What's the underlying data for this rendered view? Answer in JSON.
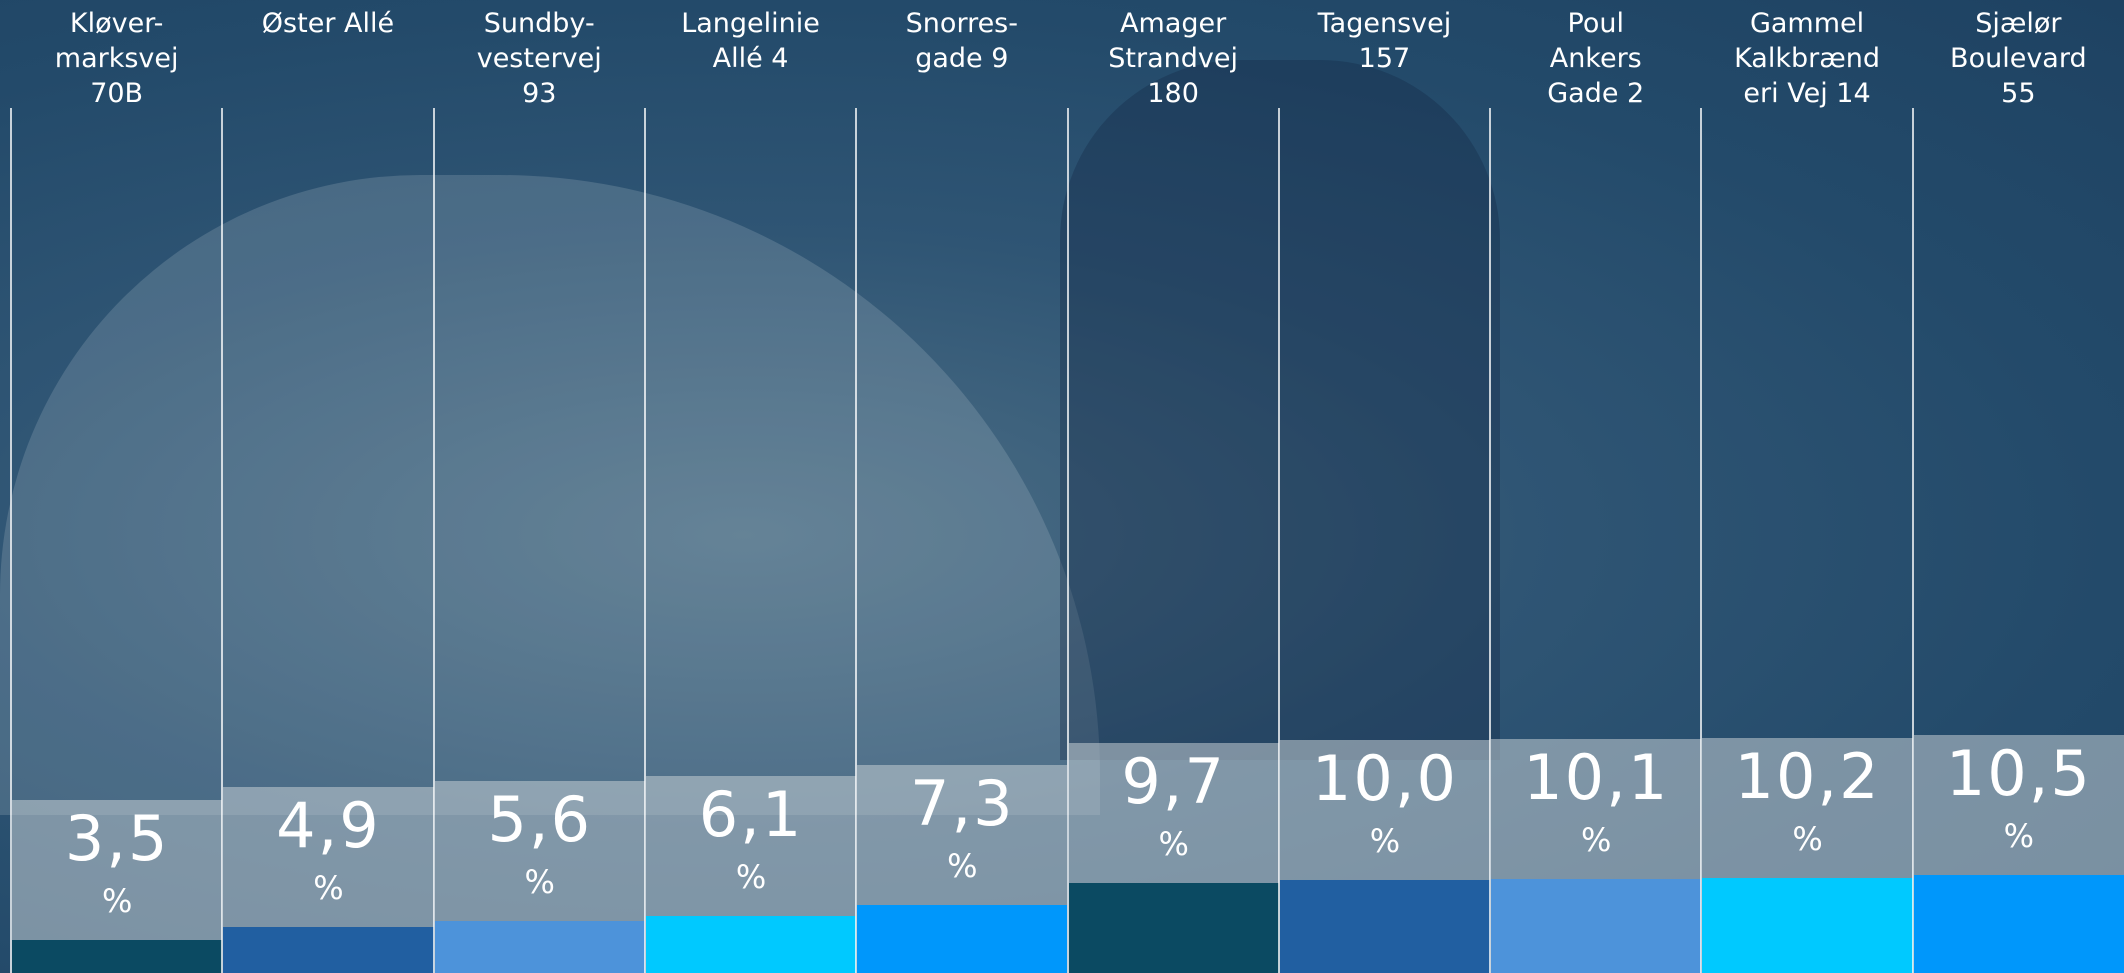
{
  "chart_data": {
    "type": "bar",
    "categories": [
      "Kløver-\nmarksvej\n70B",
      "Øster Allé",
      "Sundby-\nvestervej\n93",
      "Langelinie\nAllé 4",
      "Snorres-\ngade 9",
      "Amager\nStrandvej\n180",
      "Tagensvej\n157",
      "Poul\nAnkers\nGade 2",
      "Gammel\nKalkbrænd\neri Vej 14",
      "Sjælør\nBoulevard\n55"
    ],
    "values": [
      3.5,
      4.9,
      5.6,
      6.1,
      7.3,
      9.7,
      10.0,
      10.1,
      10.2,
      10.5
    ],
    "value_labels": [
      "3,5",
      "4,9",
      "5,6",
      "6,1",
      "7,3",
      "9,7",
      "10,0",
      "10,1",
      "10,2",
      "10,5"
    ],
    "unit": "%",
    "colors": [
      "#0b4a62",
      "#215fa1",
      "#4d93da",
      "#00c9ff",
      "#0097fb",
      "#0b4a62",
      "#215fa1",
      "#4d93da",
      "#00c9ff",
      "#0097fb"
    ]
  }
}
